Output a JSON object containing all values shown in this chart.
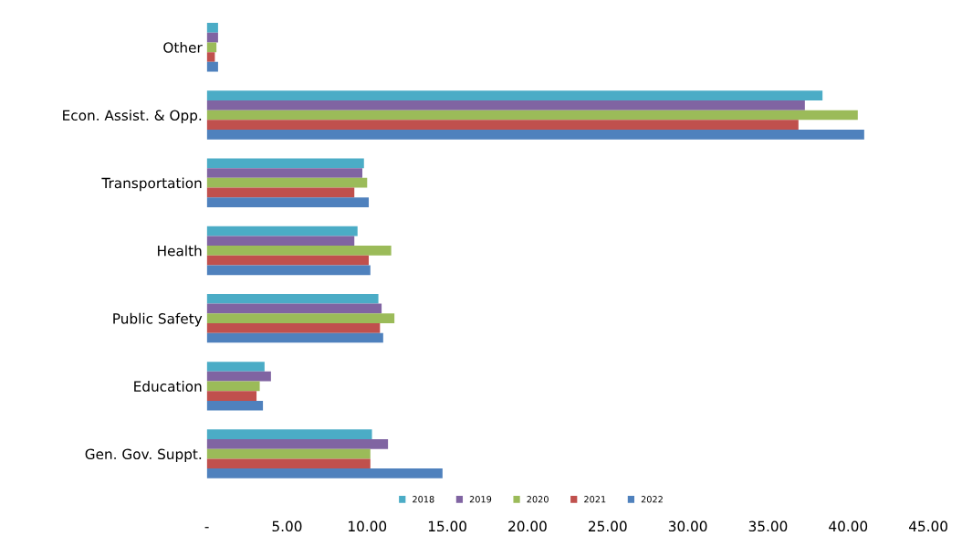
{
  "chart_data": {
    "type": "bar",
    "orientation": "horizontal",
    "categories": [
      "Other",
      "Econ. Assist. & Opp.",
      "Transportation",
      "Health",
      "Public Safety",
      "Education",
      "Gen. Gov. Suppt."
    ],
    "series": [
      {
        "name": "2018",
        "color": "#4bacc6",
        "values": [
          0.7,
          38.4,
          9.8,
          9.4,
          10.7,
          3.6,
          10.3
        ]
      },
      {
        "name": "2019",
        "color": "#8064a2",
        "values": [
          0.7,
          37.3,
          9.7,
          9.2,
          10.9,
          4.0,
          11.3
        ]
      },
      {
        "name": "2020",
        "color": "#9bbb59",
        "values": [
          0.6,
          40.6,
          10.0,
          11.5,
          11.7,
          3.3,
          10.2
        ]
      },
      {
        "name": "2021",
        "color": "#c0504d",
        "values": [
          0.5,
          36.9,
          9.2,
          10.1,
          10.8,
          3.1,
          10.2
        ]
      },
      {
        "name": "2022",
        "color": "#4f81bd",
        "values": [
          0.7,
          41.0,
          10.1,
          10.2,
          11.0,
          3.5,
          14.7
        ]
      }
    ],
    "xlim": [
      0,
      45
    ],
    "xticks": [
      {
        "value": 0,
        "label": "-"
      },
      {
        "value": 5,
        "label": "5.00"
      },
      {
        "value": 10,
        "label": "10.00"
      },
      {
        "value": 15,
        "label": "15.00"
      },
      {
        "value": 20,
        "label": "20.00"
      },
      {
        "value": 25,
        "label": "25.00"
      },
      {
        "value": 30,
        "label": "30.00"
      },
      {
        "value": 35,
        "label": "35.00"
      },
      {
        "value": 40,
        "label": "40.00"
      },
      {
        "value": 45,
        "label": "45.00"
      }
    ],
    "grid": false,
    "legend": "bottom"
  }
}
